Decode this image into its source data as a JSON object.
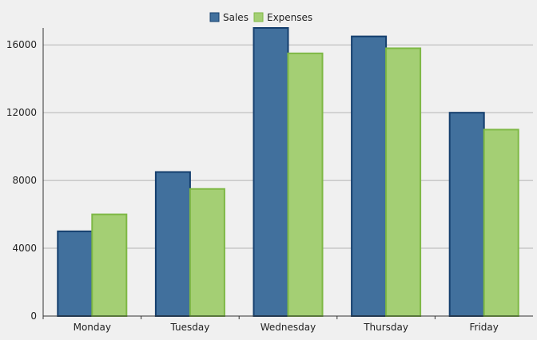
{
  "chart_data": {
    "type": "bar",
    "categories": [
      "Monday",
      "Tuesday",
      "Wednesday",
      "Thursday",
      "Friday"
    ],
    "series": [
      {
        "name": "Sales",
        "values": [
          5000,
          8500,
          17000,
          16500,
          12000
        ],
        "fill": "#41709d",
        "stroke": "#153f6e"
      },
      {
        "name": "Expenses",
        "values": [
          6000,
          7500,
          15500,
          15800,
          11000
        ],
        "fill": "#a4cf74",
        "stroke": "#7eb845"
      }
    ],
    "ylim": [
      0,
      17000
    ],
    "yticks": [
      0,
      4000,
      8000,
      12000,
      16000
    ],
    "grid": true,
    "legend": "top-center"
  }
}
